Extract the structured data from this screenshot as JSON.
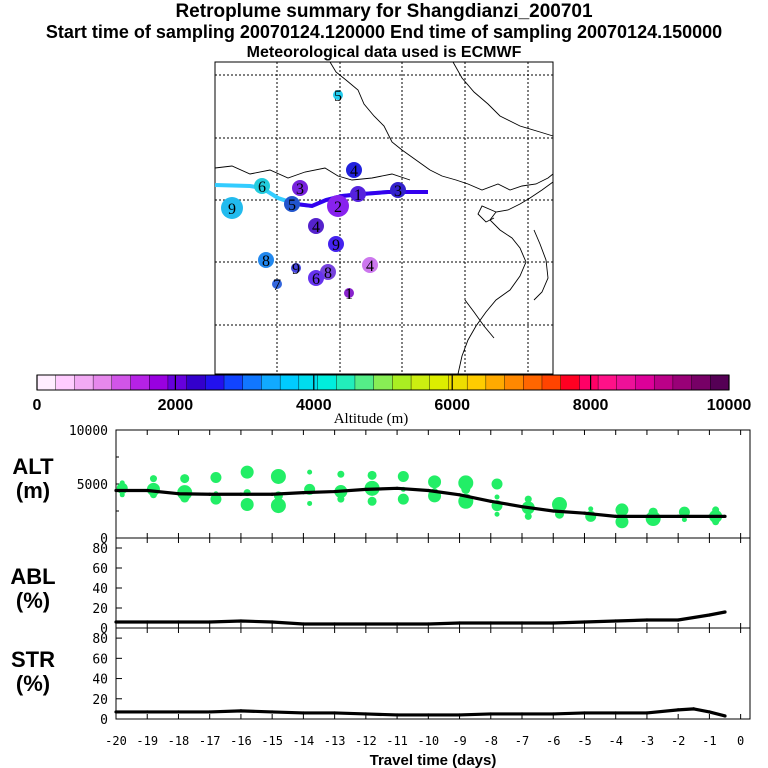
{
  "title_lines": [
    "Retroplume summary for Shangdianzi_200701",
    "Start time of sampling 20070124.120000     End time of sampling 20070124.150000",
    "Meteorological data used is ECMWF"
  ],
  "colors": {
    "trajectory_start": "#33ccff",
    "trajectory_end": "#3300ee",
    "series_line": "#000000",
    "altitude_dots": "#22ee66"
  },
  "chart_data": [
    {
      "type": "map",
      "description_id": "retroplume-map",
      "clusters": [
        {
          "label": "5",
          "color": "#22ccee",
          "size": "small"
        },
        {
          "label": "4",
          "color": "#2222dd",
          "size": "medium"
        },
        {
          "label": "6",
          "color": "#22ccdd",
          "size": "medium"
        },
        {
          "label": "9",
          "color": "#22bbee",
          "size": "large"
        },
        {
          "label": "3",
          "color": "#7722dd",
          "size": "medium"
        },
        {
          "label": "5",
          "color": "#2255cc",
          "size": "medium"
        },
        {
          "label": "2",
          "color": "#8822ee",
          "size": "large"
        },
        {
          "label": "1",
          "color": "#5522dd",
          "size": "medium"
        },
        {
          "label": "3",
          "color": "#3322cc",
          "size": "medium"
        },
        {
          "label": "4",
          "color": "#5522cc",
          "size": "medium"
        },
        {
          "label": "9",
          "color": "#4422ee",
          "size": "medium"
        },
        {
          "label": "8",
          "color": "#2288ee",
          "size": "medium"
        },
        {
          "label": "9",
          "color": "#4444dd",
          "size": "small"
        },
        {
          "label": "8",
          "color": "#7744dd",
          "size": "medium"
        },
        {
          "label": "6",
          "color": "#6633ee",
          "size": "medium"
        },
        {
          "label": "4",
          "color": "#cc77ee",
          "size": "medium"
        },
        {
          "label": "7",
          "color": "#3366dd",
          "size": "small"
        },
        {
          "label": "1",
          "color": "#8822cc",
          "size": "small"
        }
      ]
    },
    {
      "type": "colorbar",
      "title": "Altitude (m)",
      "range": [
        0,
        10000
      ],
      "tick_labels": [
        "0",
        "2000",
        "4000",
        "6000",
        "8000",
        "10000"
      ],
      "colors": [
        "#ffeeff",
        "#ffccff",
        "#f2aaf4",
        "#e688ec",
        "#d155e8",
        "#b622e6",
        "#9900e0",
        "#6600dd",
        "#3300cc",
        "#2211ee",
        "#1144ff",
        "#1177ff",
        "#11aaff",
        "#00ccff",
        "#00ddee",
        "#00eedd",
        "#22eebb",
        "#55ee88",
        "#88ee55",
        "#aaee22",
        "#ccee11",
        "#ddee00",
        "#eedd00",
        "#ffcc00",
        "#ffaa00",
        "#ff8800",
        "#ff6600",
        "#ff4400",
        "#ff0022",
        "#ff0066",
        "#ff1188",
        "#ee1199",
        "#dd0099",
        "#bb0088",
        "#990077",
        "#770066",
        "#550055"
      ]
    },
    {
      "type": "line",
      "label": "ALT\n(m)",
      "label_lines": [
        "ALT",
        "(m)"
      ],
      "x": [
        -20,
        -19,
        -18,
        -17,
        -16,
        -15,
        -14,
        -13,
        -12,
        -11,
        -10,
        -9,
        -8,
        -7,
        -6,
        -5,
        -4,
        -3,
        -2,
        -1,
        -0.5
      ],
      "values": [
        4400,
        4400,
        4100,
        4050,
        4050,
        4050,
        4200,
        4300,
        4500,
        4600,
        4400,
        4000,
        3400,
        2900,
        2500,
        2300,
        2000,
        2000,
        2000,
        2000,
        2000
      ],
      "ylim": [
        0,
        10000
      ],
      "ytick_labels": [
        "10000",
        "5000",
        "0"
      ],
      "dot_groups": [
        {
          "x": -19.8,
          "y": [
            4000,
            4600,
            5100
          ]
        },
        {
          "x": -18.8,
          "y": [
            4000,
            4500,
            5500
          ]
        },
        {
          "x": -17.8,
          "y": [
            3700,
            4200,
            5500
          ]
        },
        {
          "x": -16.8,
          "y": [
            3600,
            4100,
            5600
          ]
        },
        {
          "x": -15.8,
          "y": [
            3100,
            4200,
            6100
          ]
        },
        {
          "x": -14.8,
          "y": [
            3000,
            3900,
            5700
          ]
        },
        {
          "x": -13.8,
          "y": [
            3200,
            4500,
            6100
          ]
        },
        {
          "x": -12.8,
          "y": [
            3600,
            4300,
            5900
          ]
        },
        {
          "x": -11.8,
          "y": [
            3400,
            4600,
            5800
          ]
        },
        {
          "x": -10.8,
          "y": [
            3600,
            4500,
            5700
          ]
        },
        {
          "x": -9.8,
          "y": [
            3900,
            4300,
            5200
          ]
        },
        {
          "x": -8.8,
          "y": [
            3400,
            4500,
            5100
          ]
        },
        {
          "x": -7.8,
          "y": [
            2200,
            3000,
            3800,
            5000
          ]
        },
        {
          "x": -6.8,
          "y": [
            2000,
            2800,
            3600
          ]
        },
        {
          "x": -5.8,
          "y": [
            2200,
            3100
          ]
        },
        {
          "x": -4.8,
          "y": [
            2000,
            2700
          ]
        },
        {
          "x": -3.8,
          "y": [
            1500,
            2000,
            2600
          ]
        },
        {
          "x": -2.8,
          "y": [
            1800,
            2400
          ]
        },
        {
          "x": -1.8,
          "y": [
            1700,
            2400
          ]
        },
        {
          "x": -0.8,
          "y": [
            1500,
            2000,
            2600
          ]
        }
      ]
    },
    {
      "type": "line",
      "label_lines": [
        "ABL",
        "(%)"
      ],
      "x": [
        -20,
        -19,
        -18,
        -17,
        -16,
        -15,
        -14,
        -13,
        -12,
        -11,
        -10,
        -9,
        -8,
        -7,
        -6,
        -5,
        -4,
        -3,
        -2,
        -1,
        -0.5
      ],
      "values": [
        6,
        6,
        6,
        6,
        7,
        6,
        4,
        4,
        4,
        4,
        4,
        5,
        5,
        5,
        5,
        6,
        7,
        8,
        8,
        13,
        16
      ],
      "ylim": [
        0,
        90
      ],
      "ytick_labels": [
        "80",
        "60",
        "40",
        "20",
        "0"
      ]
    },
    {
      "type": "line",
      "label_lines": [
        "STR",
        "(%)"
      ],
      "x": [
        -20,
        -19,
        -18,
        -17,
        -16,
        -15,
        -14,
        -13,
        -12,
        -11,
        -10,
        -9,
        -8,
        -7,
        -6,
        -5,
        -4,
        -3,
        -2,
        -1.5,
        -1,
        -0.5
      ],
      "values": [
        7,
        7,
        7,
        7,
        8,
        7,
        6,
        6,
        5,
        4,
        4,
        4,
        5,
        5,
        5,
        6,
        6,
        6,
        9,
        10,
        7,
        3
      ],
      "ylim": [
        0,
        90
      ],
      "ytick_labels": [
        "80",
        "60",
        "40",
        "20",
        "0"
      ],
      "xlabel": "Travel time (days)",
      "xtick_labels": [
        "-20",
        "-19",
        "-18",
        "-17",
        "-16",
        "-15",
        "-14",
        "-13",
        "-12",
        "-11",
        "-10",
        "-9",
        "-8",
        "-7",
        "-6",
        "-5",
        "-4",
        "-3",
        "-2",
        "-1",
        "0"
      ]
    }
  ]
}
